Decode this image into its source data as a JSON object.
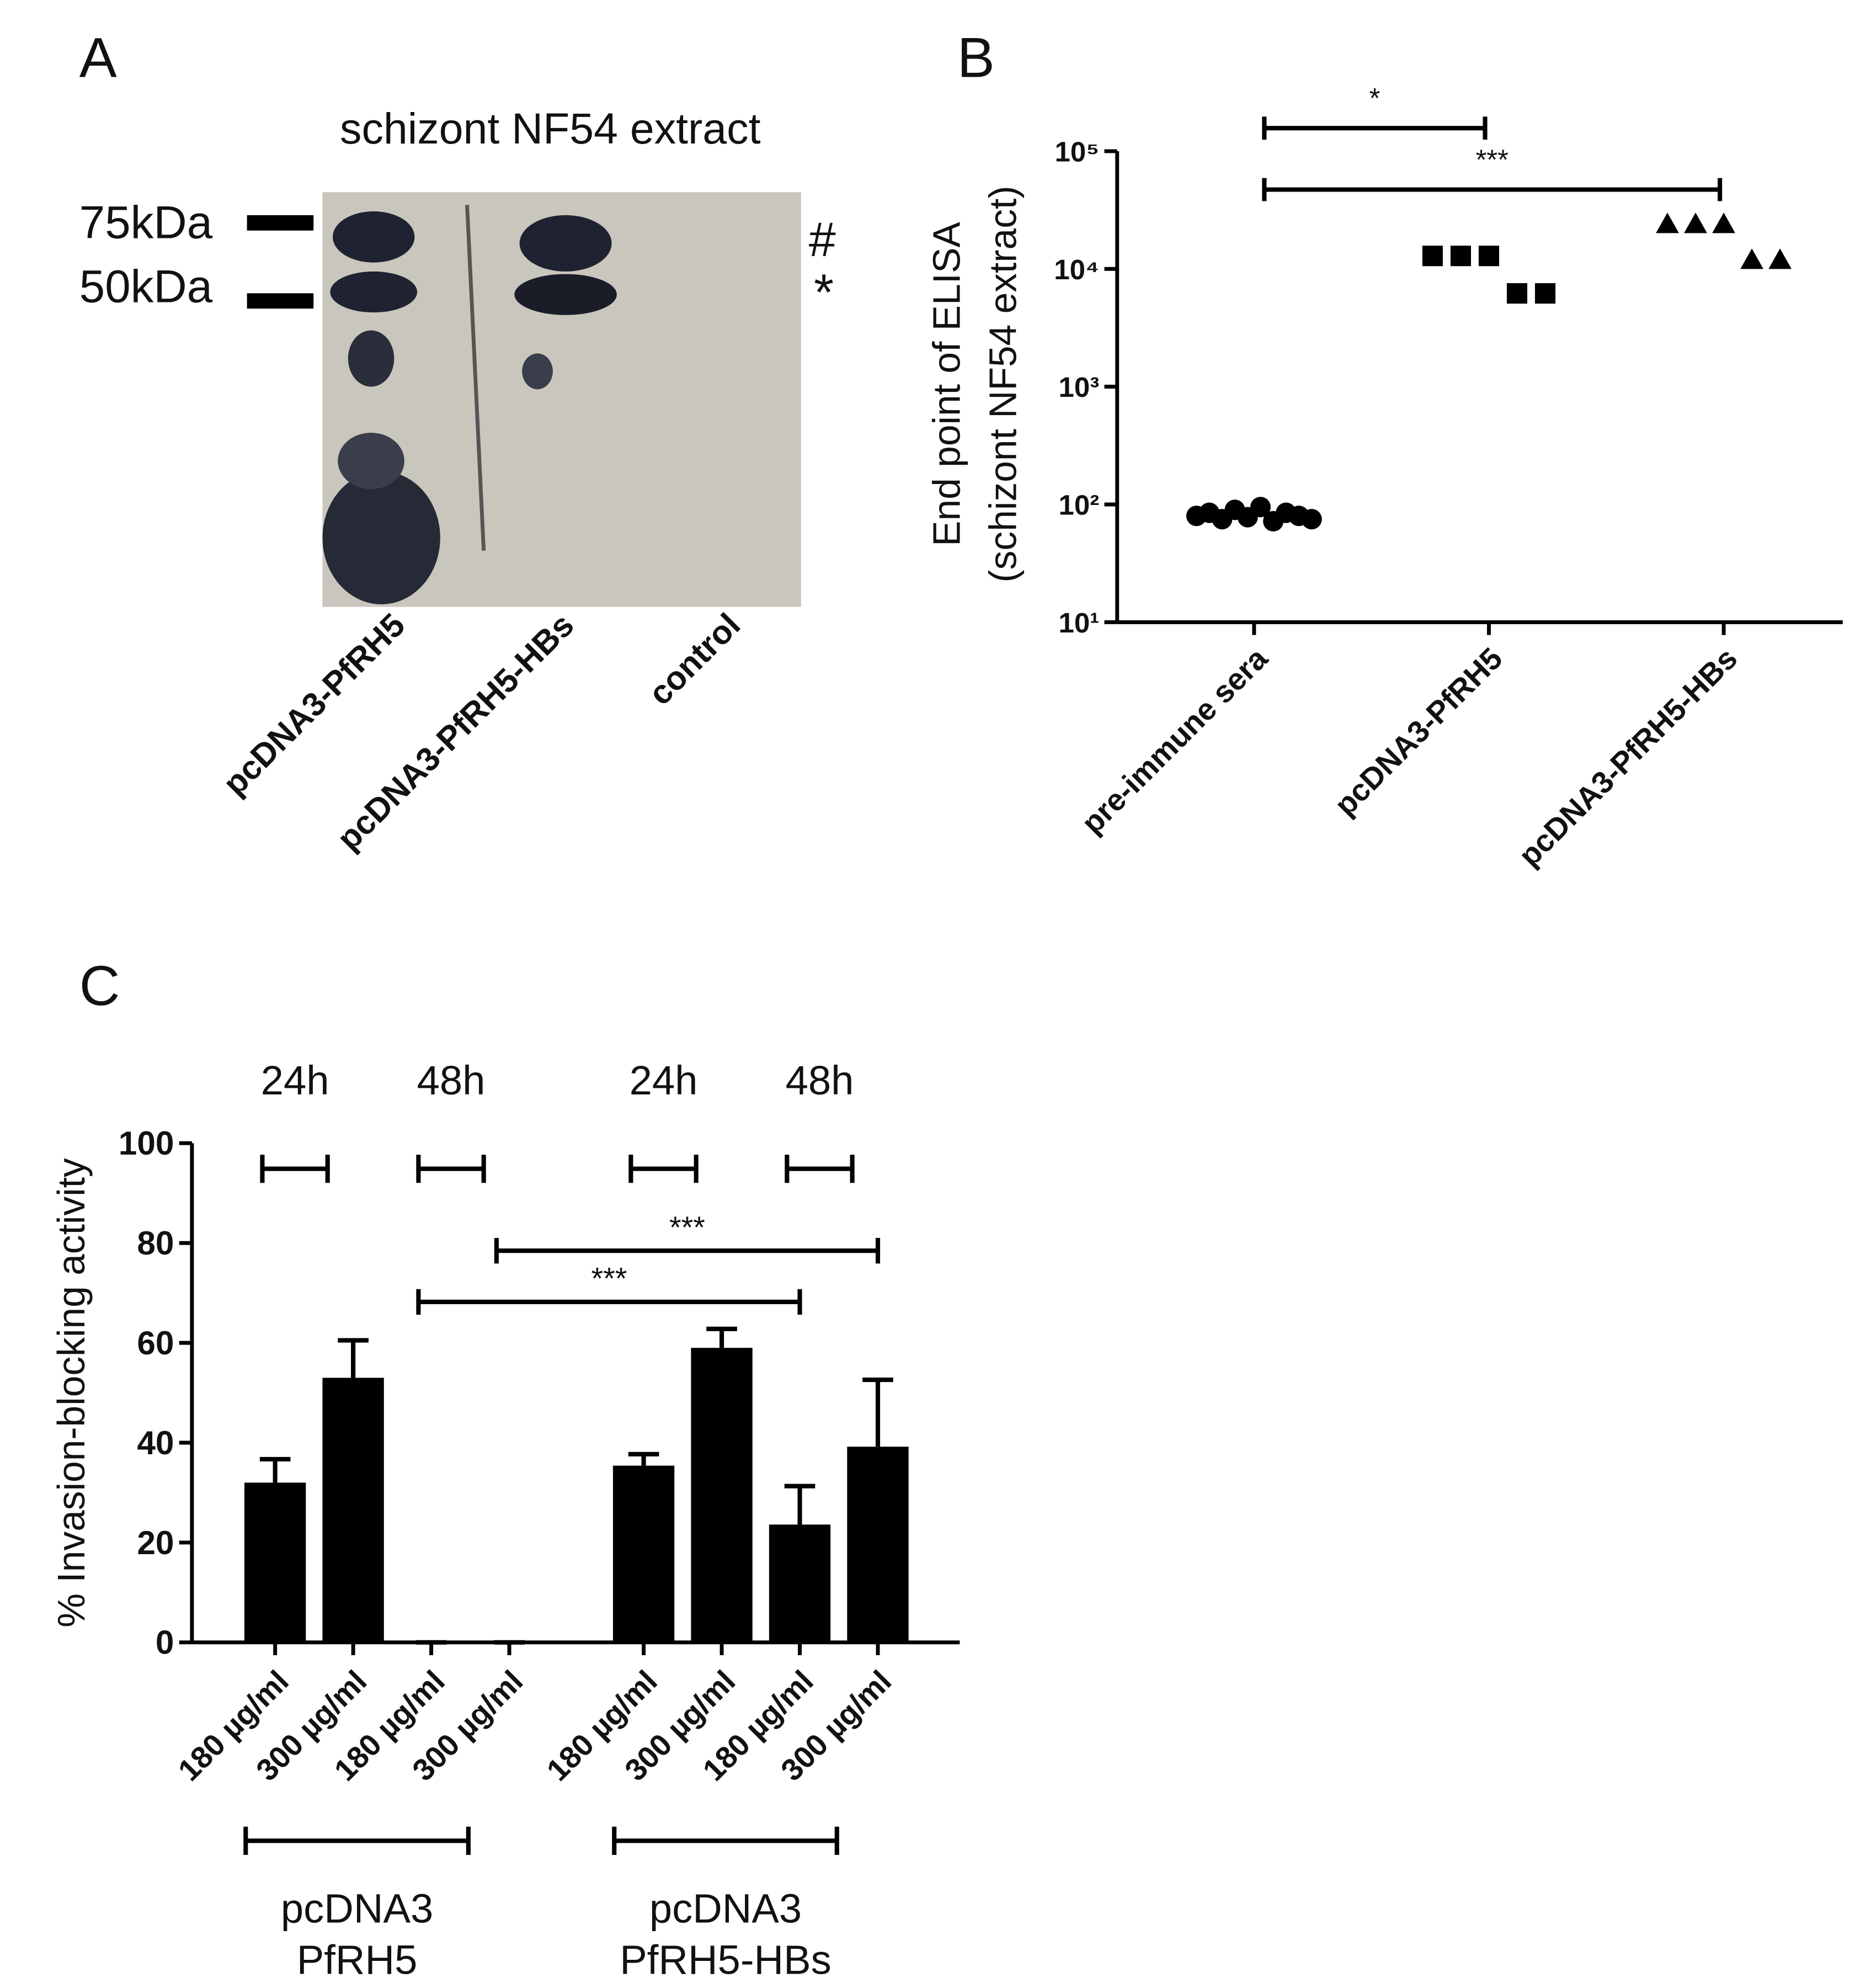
{
  "blot": {
    "panel": "A",
    "title": "schizont NF54 extract",
    "markers": [
      "75kDa",
      "50kDa"
    ],
    "band_labels": [
      "#",
      "*"
    ],
    "lanes": [
      "pcDNA3-PfRH5",
      "pcDNA3-PfRH5-HBs",
      "control"
    ]
  },
  "chart_data": [
    {
      "type": "dot",
      "panel": "B",
      "ylabel": [
        "End point of ELISA",
        "(schizont NF54 extract)"
      ],
      "categories": [
        "pre-immune sera",
        "pcDNA3-PfRH5",
        "pcDNA3-PfRH5-HBs"
      ],
      "values": [
        [
          80,
          85,
          75,
          90,
          78,
          95,
          72,
          85,
          80,
          75
        ],
        [
          12900,
          12900,
          12900,
          6200,
          6200
        ],
        [
          24000,
          24000,
          24000,
          11900,
          11900
        ]
      ],
      "markers": [
        "circle",
        "square",
        "triangle"
      ],
      "color": "#000000",
      "log_scale": true,
      "ylim": [
        10,
        100000
      ],
      "yticks": [
        {
          "value": 10,
          "label": "10¹"
        },
        {
          "value": 100,
          "label": "10²"
        },
        {
          "value": 1000,
          "label": "10³"
        },
        {
          "value": 10000,
          "label": "10⁴"
        },
        {
          "value": 100000,
          "label": "10⁵"
        }
      ],
      "significance": [
        {
          "label": "*",
          "from": 0,
          "to": 1
        },
        {
          "label": "***",
          "from": 0,
          "to": 2
        }
      ]
    },
    {
      "type": "bar",
      "panel": "C",
      "ylabel": "% Invasion-blocking activity",
      "categories": [
        "180 µg/ml",
        "300 µg/ml",
        "180 µg/ml",
        "300 µg/ml",
        "180 µg/ml",
        "300 µg/ml",
        "180 µg/ml",
        "300 µg/ml"
      ],
      "values": [
        32,
        53,
        0,
        0,
        35.4,
        59,
        23.6,
        39.2
      ],
      "errors": [
        4.7,
        7.5,
        0,
        0,
        2.3,
        3.8,
        7.7,
        13.4
      ],
      "color": "#000000",
      "ylim": [
        0,
        100
      ],
      "yticks": [
        0,
        20,
        40,
        60,
        80,
        100
      ],
      "timepoints": [
        {
          "label": "24h",
          "from": 0,
          "to": 1
        },
        {
          "label": "48h",
          "from": 2,
          "to": 3
        },
        {
          "label": "24h",
          "from": 4,
          "to": 5
        },
        {
          "label": "48h",
          "from": 6,
          "to": 7
        }
      ],
      "significance": [
        {
          "label": "***",
          "from": 3,
          "to": 7
        },
        {
          "label": "***",
          "from": 2,
          "to": 6
        }
      ],
      "groups": [
        {
          "label": [
            "pcDNA3",
            "PfRH5"
          ],
          "from": 0,
          "to": 3
        },
        {
          "label": [
            "pcDNA3",
            "PfRH5-HBs"
          ],
          "from": 4,
          "to": 7
        }
      ]
    }
  ]
}
